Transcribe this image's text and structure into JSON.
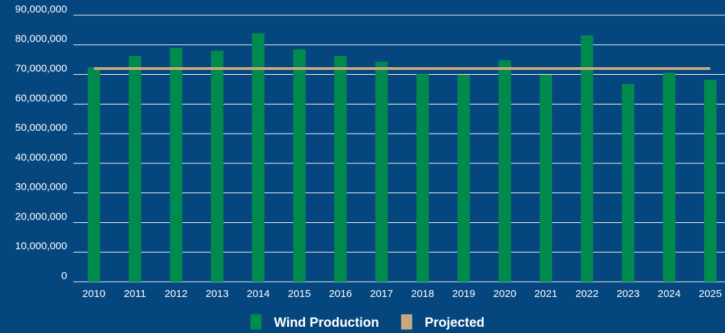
{
  "chart_data": {
    "type": "bar",
    "categories": [
      "2010",
      "2011",
      "2012",
      "2013",
      "2014",
      "2015",
      "2016",
      "2017",
      "2018",
      "2019",
      "2020",
      "2021",
      "2022",
      "2023",
      "2024",
      "2025"
    ],
    "series": [
      {
        "name": "Wind Production",
        "type": "bar",
        "color": "#008a4e",
        "values": [
          72400000,
          76200000,
          79000000,
          78000000,
          83900000,
          78500000,
          76200000,
          74300000,
          70100000,
          69900000,
          74800000,
          69900000,
          83200000,
          66800000,
          70600000,
          68200000
        ]
      },
      {
        "name": "Projected",
        "type": "line",
        "color": "#c8a97e",
        "values": [
          72000000,
          72000000,
          72000000,
          72000000,
          72000000,
          72000000,
          72000000,
          72000000,
          72000000,
          72000000,
          72000000,
          72000000,
          72000000,
          72000000,
          72000000,
          72000000
        ]
      }
    ],
    "ylim": [
      0,
      90000000
    ],
    "yticks": [
      0,
      {
        "value": 10000000,
        "label": "10,000,000"
      },
      {
        "value": 20000000,
        "label": "20,000,000"
      },
      {
        "value": 30000000,
        "label": "30,000,000"
      },
      {
        "value": 40000000,
        "label": "40,000,000"
      },
      {
        "value": 50000000,
        "label": "50,000,000"
      },
      {
        "value": 60000000,
        "label": "60,000,000"
      },
      {
        "value": 70000000,
        "label": "70,000,000"
      },
      {
        "value": 80000000,
        "label": "80,000,000"
      },
      {
        "value": 90000000,
        "label": "90,000,000"
      }
    ],
    "grid": true,
    "legend": "bottom"
  }
}
